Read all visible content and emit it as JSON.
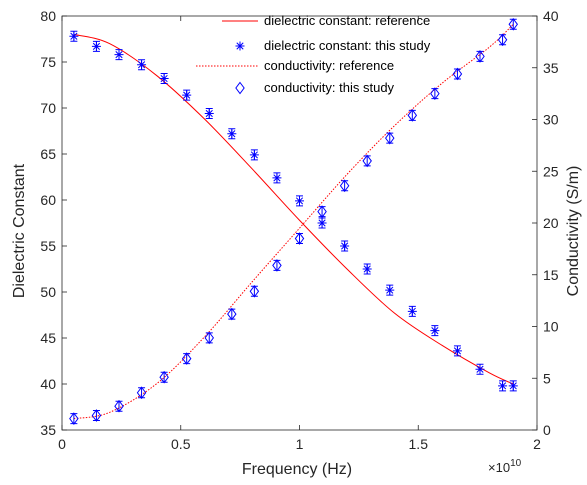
{
  "chart_data": {
    "type": "line",
    "xlabel": "Frequency (Hz)",
    "ylabel_left": "Dielectric Constant",
    "ylabel_right": "Conductivity (S/m)",
    "x_multiplier_base": "×10",
    "x_multiplier_exp": "10",
    "xlim": [
      0,
      2
    ],
    "ylim_left": [
      35,
      80
    ],
    "ylim_right": [
      0,
      40
    ],
    "x_ticks": [
      "0",
      "0.5",
      "1",
      "1.5",
      "2"
    ],
    "y_left_ticks": [
      "35",
      "40",
      "45",
      "50",
      "55",
      "60",
      "65",
      "70",
      "75",
      "80"
    ],
    "y_right_ticks": [
      "0",
      "5",
      "10",
      "15",
      "20",
      "25",
      "30",
      "35",
      "40"
    ],
    "x_scale": "×1e10",
    "grid": false,
    "legend_placement": "top-center",
    "colors": {
      "reference": "#ff0000",
      "study": "#0000ff",
      "axis": "#262626"
    },
    "series": [
      {
        "name": "dielectric constant: reference",
        "axis": "left",
        "style": "solid-red-line",
        "x": [
          0.05,
          0.2,
          0.4,
          0.6,
          0.8,
          1.0,
          1.2,
          1.4,
          1.6,
          1.8,
          1.9
        ],
        "y": [
          78.0,
          77.0,
          73.5,
          68.8,
          63.4,
          57.8,
          52.5,
          47.7,
          44.2,
          41.2,
          40.0
        ]
      },
      {
        "name": "dielectric constant: this study",
        "axis": "left",
        "style": "blue-star-errorbar",
        "x": [
          0.05,
          0.145,
          0.24,
          0.335,
          0.43,
          0.525,
          0.62,
          0.715,
          0.81,
          0.905,
          1.0,
          1.095,
          1.19,
          1.285,
          1.38,
          1.475,
          1.57,
          1.665,
          1.76,
          1.855,
          1.9
        ],
        "y": [
          77.8,
          76.7,
          75.8,
          74.7,
          73.2,
          71.4,
          69.4,
          67.2,
          64.9,
          62.4,
          59.9,
          57.5,
          55.0,
          52.5,
          50.2,
          47.9,
          45.8,
          43.6,
          41.6,
          39.8,
          39.8
        ]
      },
      {
        "name": "conductivity: reference",
        "axis": "right",
        "style": "dotted-red-line",
        "x": [
          0.05,
          0.2,
          0.4,
          0.6,
          0.8,
          1.0,
          1.2,
          1.4,
          1.6,
          1.8,
          1.9
        ],
        "y": [
          1.1,
          1.7,
          4.5,
          9.0,
          14.3,
          19.5,
          24.7,
          29.4,
          33.5,
          37.0,
          39.2
        ]
      },
      {
        "name": "conductivity: this study",
        "axis": "right",
        "style": "blue-diamond-errorbar",
        "x": [
          0.05,
          0.145,
          0.24,
          0.335,
          0.43,
          0.525,
          0.62,
          0.715,
          0.81,
          0.905,
          1.0,
          1.095,
          1.19,
          1.285,
          1.38,
          1.475,
          1.57,
          1.665,
          1.76,
          1.855,
          1.9
        ],
        "y": [
          1.1,
          1.4,
          2.3,
          3.6,
          5.1,
          6.9,
          8.9,
          11.2,
          13.4,
          15.9,
          18.5,
          21.1,
          23.6,
          26.0,
          28.2,
          30.4,
          32.5,
          34.4,
          36.1,
          37.7,
          39.2
        ]
      }
    ]
  }
}
